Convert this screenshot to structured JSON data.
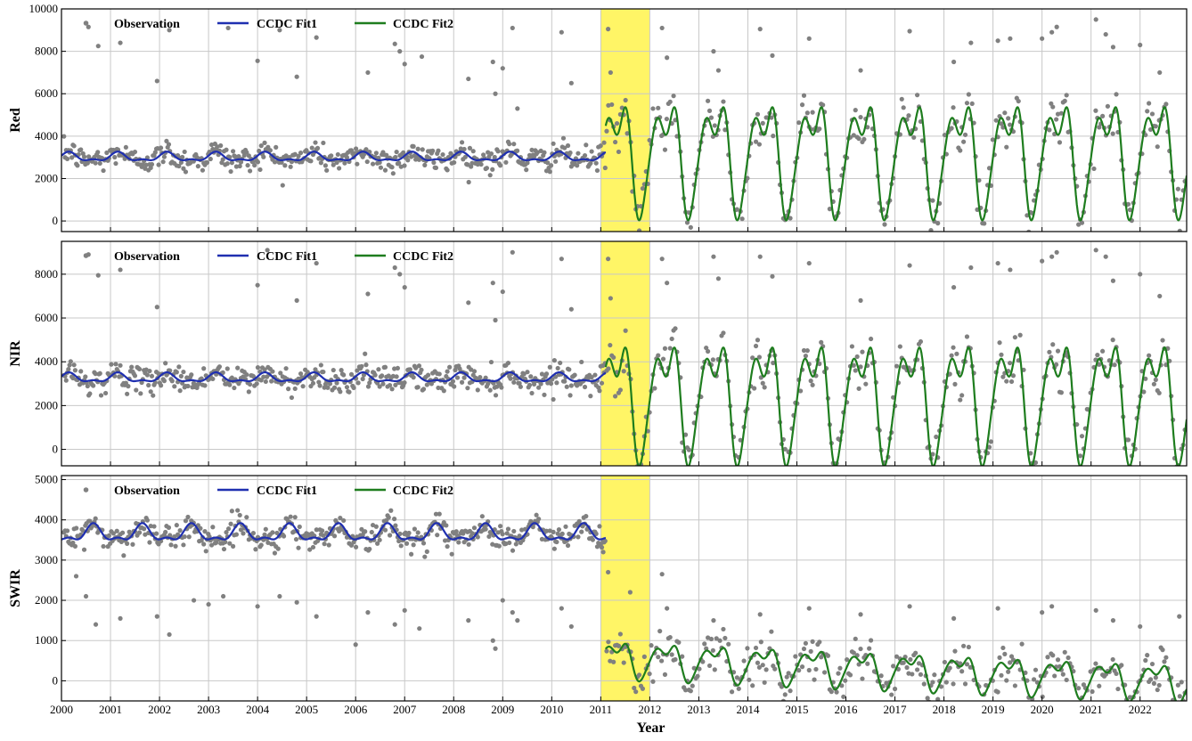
{
  "figure": {
    "xlabel": "Year",
    "x_tick_labels": [
      "2000",
      "2001",
      "2002",
      "2003",
      "2004",
      "2005",
      "2006",
      "2007",
      "2008",
      "2009",
      "2010",
      "2011",
      "2012",
      "2013",
      "2014",
      "2015",
      "2016",
      "2017",
      "2018",
      "2019",
      "2020",
      "2021",
      "2022"
    ],
    "legend": {
      "observation": "Observation",
      "fit1": "CCDC Fit1",
      "fit2": "CCDC Fit2"
    },
    "colors": {
      "observation": "#808080",
      "fit1": "#1f2fb0",
      "fit2": "#1e7d1e",
      "highlight": "#fff566",
      "grid": "#c8c8c8"
    },
    "highlight_period": {
      "start": 2011.0,
      "end": 2012.0
    }
  },
  "chart_data": [
    {
      "type": "line",
      "ylabel": "Red",
      "ylim": [
        -500,
        10000
      ],
      "xlim": [
        2000.0,
        2022.95
      ],
      "y_ticks": [
        0,
        2000,
        4000,
        6000,
        8000,
        10000
      ],
      "y_tick_labels": [
        "0",
        "2000",
        "4000",
        "6000",
        "8000",
        "10000"
      ],
      "grid": true,
      "legend_position": "top-left",
      "series": [
        {
          "name": "Observation",
          "kind": "scatter",
          "color": "#808080"
        },
        {
          "name": "CCDC Fit1",
          "kind": "line",
          "color": "#1f2fb0",
          "model": {
            "x_start": 2000.0,
            "x_end": 2011.1,
            "mean": 3000,
            "amplitude": 180,
            "phase": 0.15,
            "trend": 0
          }
        },
        {
          "name": "CCDC Fit2",
          "kind": "line",
          "color": "#1e7d1e",
          "model": {
            "x_start": 2011.1,
            "x_end": 2022.95,
            "peak": 6000,
            "trough": 500,
            "secondary": 3800,
            "trend": 0
          }
        }
      ],
      "outliers": [
        [
          2000.55,
          9150
        ],
        [
          2000.75,
          8250
        ],
        [
          2001.2,
          8400
        ],
        [
          2001.95,
          6600
        ],
        [
          2002.2,
          9000
        ],
        [
          2003.4,
          9100
        ],
        [
          2004.0,
          7550
        ],
        [
          2004.45,
          9000
        ],
        [
          2004.8,
          6800
        ],
        [
          2005.2,
          8650
        ],
        [
          2006.25,
          7000
        ],
        [
          2006.8,
          8350
        ],
        [
          2006.9,
          8000
        ],
        [
          2007.0,
          7400
        ],
        [
          2007.35,
          7750
        ],
        [
          2008.3,
          6700
        ],
        [
          2008.8,
          7500
        ],
        [
          2008.85,
          6000
        ],
        [
          2009.0,
          7200
        ],
        [
          2009.2,
          9100
        ],
        [
          2009.3,
          5300
        ],
        [
          2010.2,
          8900
        ],
        [
          2010.4,
          6500
        ],
        [
          2011.15,
          9050
        ],
        [
          2011.2,
          7000
        ],
        [
          2012.25,
          9100
        ],
        [
          2012.35,
          7700
        ],
        [
          2013.3,
          8000
        ],
        [
          2013.4,
          7100
        ],
        [
          2014.25,
          9050
        ],
        [
          2014.5,
          7800
        ],
        [
          2015.25,
          8600
        ],
        [
          2016.3,
          7100
        ],
        [
          2017.3,
          8950
        ],
        [
          2018.2,
          7500
        ],
        [
          2018.55,
          8400
        ],
        [
          2019.1,
          8500
        ],
        [
          2019.35,
          8600
        ],
        [
          2020.0,
          8600
        ],
        [
          2020.2,
          8900
        ],
        [
          2020.3,
          9150
        ],
        [
          2021.1,
          9500
        ],
        [
          2021.3,
          8800
        ],
        [
          2021.45,
          8200
        ],
        [
          2022.0,
          8300
        ],
        [
          2022.4,
          7000
        ]
      ]
    },
    {
      "type": "line",
      "ylabel": "NIR",
      "ylim": [
        -750,
        9500
      ],
      "xlim": [
        2000.0,
        2022.95
      ],
      "y_ticks": [
        0,
        2000,
        4000,
        6000,
        8000
      ],
      "y_tick_labels": [
        "0",
        "2000",
        "4000",
        "6000",
        "8000"
      ],
      "grid": true,
      "legend_position": "top-left",
      "series": [
        {
          "name": "Observation",
          "kind": "scatter",
          "color": "#808080"
        },
        {
          "name": "CCDC Fit1",
          "kind": "line",
          "color": "#1f2fb0",
          "model": {
            "x_start": 2000.0,
            "x_end": 2011.1,
            "mean": 3250,
            "amplitude": 180,
            "phase": 0.15,
            "trend": 0
          }
        },
        {
          "name": "CCDC Fit2",
          "kind": "line",
          "color": "#1e7d1e",
          "model": {
            "x_start": 2011.1,
            "x_end": 2022.95,
            "peak": 5300,
            "trough": -300,
            "secondary": 2700,
            "trend": 0
          }
        }
      ],
      "outliers": [
        [
          2000.55,
          8900
        ],
        [
          2000.75,
          7950
        ],
        [
          2001.2,
          8200
        ],
        [
          2001.95,
          6500
        ],
        [
          2004.0,
          7500
        ],
        [
          2004.2,
          9100
        ],
        [
          2004.8,
          6800
        ],
        [
          2005.2,
          8500
        ],
        [
          2006.25,
          7100
        ],
        [
          2006.8,
          8300
        ],
        [
          2006.9,
          8000
        ],
        [
          2007.0,
          7400
        ],
        [
          2008.3,
          6700
        ],
        [
          2008.8,
          7600
        ],
        [
          2008.85,
          5900
        ],
        [
          2009.0,
          7200
        ],
        [
          2009.2,
          9000
        ],
        [
          2010.2,
          8700
        ],
        [
          2010.4,
          6400
        ],
        [
          2011.15,
          8700
        ],
        [
          2011.2,
          6900
        ],
        [
          2012.25,
          8700
        ],
        [
          2012.35,
          7600
        ],
        [
          2013.3,
          8800
        ],
        [
          2013.4,
          7800
        ],
        [
          2014.25,
          8800
        ],
        [
          2014.5,
          7900
        ],
        [
          2015.25,
          8500
        ],
        [
          2016.3,
          6800
        ],
        [
          2017.3,
          8400
        ],
        [
          2018.2,
          7400
        ],
        [
          2018.55,
          8300
        ],
        [
          2019.1,
          8500
        ],
        [
          2019.35,
          8200
        ],
        [
          2020.0,
          8600
        ],
        [
          2020.2,
          8800
        ],
        [
          2020.3,
          9000
        ],
        [
          2021.1,
          9100
        ],
        [
          2021.3,
          8800
        ],
        [
          2021.45,
          7700
        ],
        [
          2022.0,
          8000
        ],
        [
          2022.4,
          7000
        ]
      ]
    },
    {
      "type": "line",
      "ylabel": "SWIR",
      "ylim": [
        -500,
        5100
      ],
      "xlim": [
        2000.0,
        2022.95
      ],
      "y_ticks": [
        0,
        1000,
        2000,
        3000,
        4000,
        5000
      ],
      "y_tick_labels": [
        "0",
        "1000",
        "2000",
        "3000",
        "4000",
        "5000"
      ],
      "grid": true,
      "legend_position": "top-left",
      "series": [
        {
          "name": "Observation",
          "kind": "scatter",
          "color": "#808080"
        },
        {
          "name": "CCDC Fit1",
          "kind": "line",
          "color": "#1f2fb0",
          "model": {
            "x_start": 2000.0,
            "x_end": 2011.1,
            "mean": 3650,
            "amplitude": 180,
            "phase": 0.65,
            "trend": 0
          }
        },
        {
          "name": "CCDC Fit2",
          "kind": "line",
          "color": "#1e7d1e",
          "model": {
            "x_start": 2011.1,
            "x_end": 2022.95,
            "peak": 1050,
            "trough": 100,
            "secondary": 600,
            "trend": -50
          }
        }
      ],
      "outliers": [
        [
          2000.3,
          2600
        ],
        [
          2000.5,
          2100
        ],
        [
          2000.7,
          1400
        ],
        [
          2001.2,
          1550
        ],
        [
          2001.95,
          1600
        ],
        [
          2002.2,
          1150
        ],
        [
          2002.7,
          2000
        ],
        [
          2003.0,
          1900
        ],
        [
          2003.3,
          2100
        ],
        [
          2004.0,
          1850
        ],
        [
          2004.45,
          2100
        ],
        [
          2004.8,
          1950
        ],
        [
          2005.2,
          1600
        ],
        [
          2006.0,
          900
        ],
        [
          2006.25,
          1700
        ],
        [
          2006.8,
          1400
        ],
        [
          2007.0,
          1750
        ],
        [
          2007.3,
          1300
        ],
        [
          2008.3,
          1500
        ],
        [
          2008.8,
          1000
        ],
        [
          2008.85,
          800
        ],
        [
          2009.0,
          2000
        ],
        [
          2009.2,
          1700
        ],
        [
          2009.3,
          1500
        ],
        [
          2010.2,
          1800
        ],
        [
          2010.4,
          1350
        ],
        [
          2011.05,
          3200
        ],
        [
          2011.15,
          2700
        ],
        [
          2011.6,
          2200
        ],
        [
          2012.25,
          2650
        ],
        [
          2012.35,
          1800
        ],
        [
          2013.3,
          1500
        ],
        [
          2014.25,
          1650
        ],
        [
          2015.25,
          1800
        ],
        [
          2016.3,
          1650
        ],
        [
          2017.3,
          1850
        ],
        [
          2018.2,
          1550
        ],
        [
          2019.1,
          1800
        ],
        [
          2020.0,
          1700
        ],
        [
          2020.2,
          1850
        ],
        [
          2021.1,
          1750
        ],
        [
          2021.45,
          1500
        ],
        [
          2022.0,
          1350
        ],
        [
          2022.8,
          1600
        ]
      ]
    }
  ]
}
